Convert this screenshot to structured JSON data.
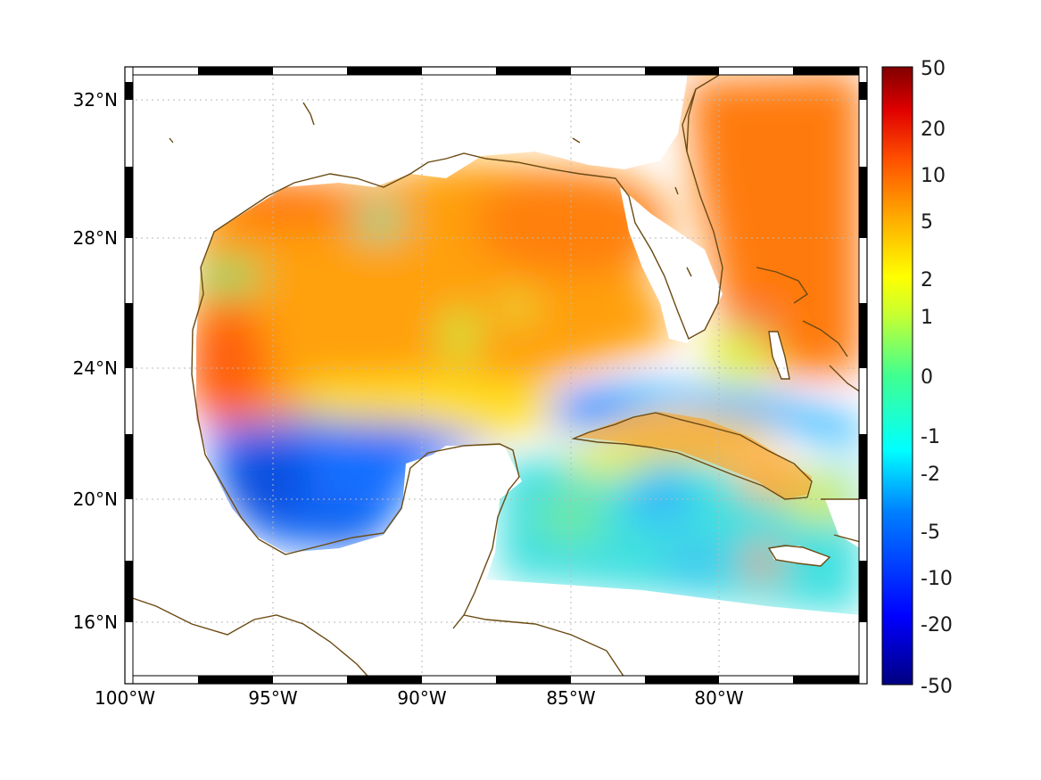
{
  "map": {
    "lon_ticks": [
      "100°W",
      "95°W",
      "90°W",
      "85°W",
      "80°W"
    ],
    "lat_ticks": [
      "32°N",
      "28°N",
      "24°N",
      "20°N",
      "16°N"
    ],
    "extent": {
      "lon": [
        -100,
        -75
      ],
      "lat": [
        14.3,
        33
      ]
    },
    "colormap": "jet",
    "coastline_color": "#6b4a12",
    "land_color": "#ffffff",
    "gridlines": "dotted"
  },
  "colorbar": {
    "ticks": [
      "50",
      "20",
      "10",
      "5",
      "2",
      "1",
      "0",
      "-1",
      "-2",
      "-5",
      "-10",
      "-20",
      "-50"
    ],
    "scale": "symmetric-log",
    "range": [
      -50,
      50
    ]
  }
}
